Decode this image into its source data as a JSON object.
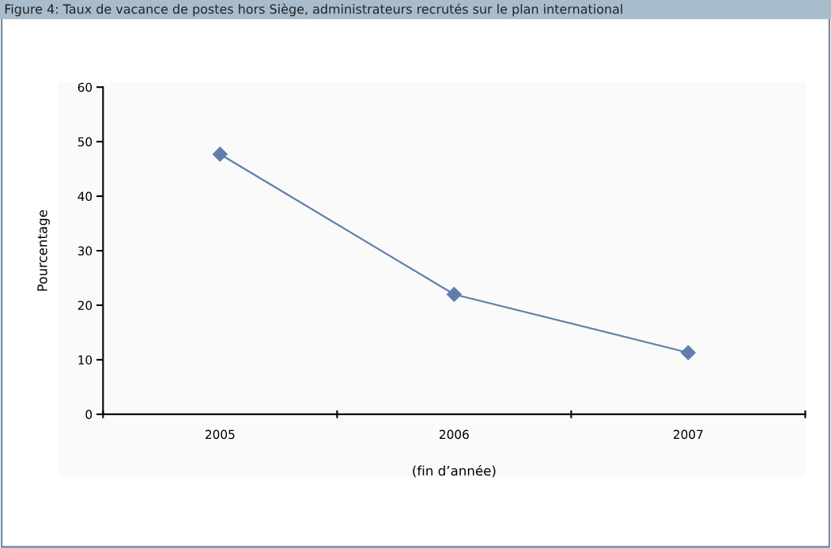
{
  "chart_data": {
    "type": "line",
    "title": "Figure 4: Taux de vacance de postes hors Siège, administrateurs recrutés sur le plan international",
    "categories": [
      "2005",
      "2006",
      "2007"
    ],
    "series": [
      {
        "color": "#5f7fab",
        "values": [
          47.7,
          22.0,
          11.3
        ]
      }
    ],
    "xlabel": "(fin d’année)",
    "ylabel": "Pourcentage",
    "ylim": [
      0,
      60
    ],
    "yticks": [
      0,
      10,
      20,
      30,
      40,
      50,
      60
    ],
    "marker": "diamond",
    "line_style": "solid",
    "grid": false,
    "legend": false
  }
}
